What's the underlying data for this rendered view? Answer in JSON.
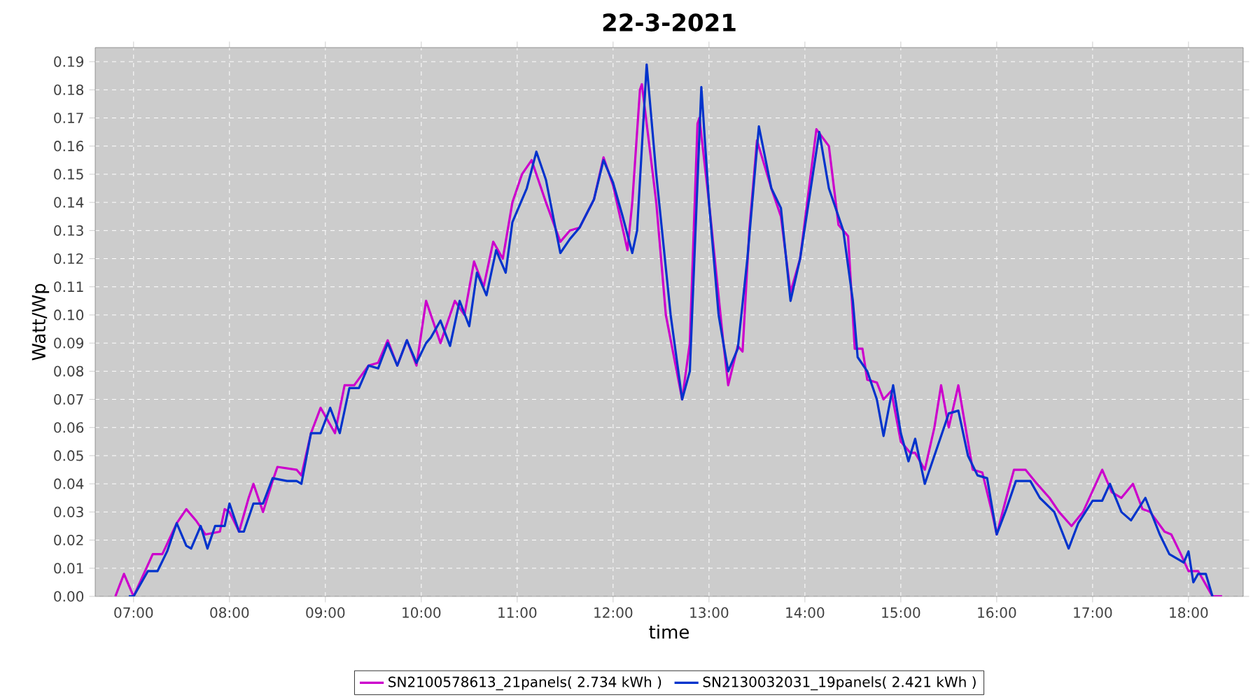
{
  "chart_data": {
    "type": "line",
    "title": "22-3-2021",
    "xlabel": "time",
    "ylabel": "Watt/Wp",
    "xlim": [
      6.6,
      18.57
    ],
    "xticks": [
      {
        "value": 7,
        "label": "07:00"
      },
      {
        "value": 8,
        "label": "08:00"
      },
      {
        "value": 9,
        "label": "09:00"
      },
      {
        "value": 10,
        "label": "10:00"
      },
      {
        "value": 11,
        "label": "11:00"
      },
      {
        "value": 12,
        "label": "12:00"
      },
      {
        "value": 13,
        "label": "13:00"
      },
      {
        "value": 14,
        "label": "14:00"
      },
      {
        "value": 15,
        "label": "15:00"
      },
      {
        "value": 16,
        "label": "16:00"
      },
      {
        "value": 17,
        "label": "17:00"
      },
      {
        "value": 18,
        "label": "18:00"
      }
    ],
    "ylim": [
      0,
      0.195
    ],
    "yticks": [
      {
        "value": 0,
        "label": "0.00"
      },
      {
        "value": 0.01,
        "label": "0.01"
      },
      {
        "value": 0.02,
        "label": "0.02"
      },
      {
        "value": 0.03,
        "label": "0.03"
      },
      {
        "value": 0.04,
        "label": "0.04"
      },
      {
        "value": 0.05,
        "label": "0.05"
      },
      {
        "value": 0.06,
        "label": "0.06"
      },
      {
        "value": 0.07,
        "label": "0.07"
      },
      {
        "value": 0.08,
        "label": "0.08"
      },
      {
        "value": 0.09,
        "label": "0.09"
      },
      {
        "value": 0.1,
        "label": "0.10"
      },
      {
        "value": 0.11,
        "label": "0.11"
      },
      {
        "value": 0.12,
        "label": "0.12"
      },
      {
        "value": 0.13,
        "label": "0.13"
      },
      {
        "value": 0.14,
        "label": "0.14"
      },
      {
        "value": 0.15,
        "label": "0.15"
      },
      {
        "value": 0.16,
        "label": "0.16"
      },
      {
        "value": 0.17,
        "label": "0.17"
      },
      {
        "value": 0.18,
        "label": "0.18"
      },
      {
        "value": 0.19,
        "label": "0.19"
      }
    ],
    "grid": true,
    "legend": "bottom",
    "series": [
      {
        "name": "SN2100578613_21panels( 2.734 kWh )",
        "color": "#cc00cc",
        "x": [
          6.81,
          6.9,
          7.0,
          7.2,
          7.3,
          7.45,
          7.55,
          7.65,
          7.75,
          7.9,
          7.95,
          8.0,
          8.1,
          8.2,
          8.25,
          8.35,
          8.45,
          8.5,
          8.7,
          8.75,
          8.85,
          8.95,
          9.1,
          9.2,
          9.3,
          9.45,
          9.55,
          9.65,
          9.75,
          9.85,
          9.95,
          10.05,
          10.2,
          10.35,
          10.45,
          10.55,
          10.65,
          10.75,
          10.85,
          10.95,
          11.05,
          11.15,
          11.3,
          11.45,
          11.55,
          11.65,
          11.8,
          11.9,
          12.0,
          12.15,
          12.2,
          12.28,
          12.3,
          12.45,
          12.55,
          12.72,
          12.8,
          12.88,
          12.9,
          13.0,
          13.15,
          13.2,
          13.3,
          13.35,
          13.42,
          13.5,
          13.65,
          13.75,
          13.85,
          13.95,
          14.12,
          14.25,
          14.35,
          14.45,
          14.52,
          14.6,
          14.65,
          14.75,
          14.82,
          14.9,
          15.0,
          15.1,
          15.15,
          15.25,
          15.35,
          15.42,
          15.5,
          15.6,
          15.65,
          15.75,
          15.85,
          15.95,
          16.0,
          16.1,
          16.18,
          16.3,
          16.42,
          16.55,
          16.65,
          16.78,
          16.9,
          17.1,
          17.2,
          17.3,
          17.42,
          17.52,
          17.6,
          17.75,
          17.82,
          17.92,
          18.0,
          18.1,
          18.2,
          18.25,
          18.35
        ],
        "values": [
          0,
          0.008,
          0,
          0.015,
          0.015,
          0.026,
          0.031,
          0.027,
          0.022,
          0.023,
          0.031,
          0.03,
          0.023,
          0.035,
          0.04,
          0.03,
          0.041,
          0.046,
          0.045,
          0.043,
          0.058,
          0.067,
          0.058,
          0.075,
          0.075,
          0.082,
          0.083,
          0.091,
          0.082,
          0.091,
          0.082,
          0.105,
          0.09,
          0.105,
          0.1,
          0.119,
          0.11,
          0.126,
          0.12,
          0.14,
          0.15,
          0.155,
          0.14,
          0.126,
          0.13,
          0.131,
          0.141,
          0.156,
          0.146,
          0.123,
          0.14,
          0.18,
          0.182,
          0.14,
          0.1,
          0.07,
          0.09,
          0.168,
          0.17,
          0.14,
          0.09,
          0.075,
          0.089,
          0.087,
          0.13,
          0.162,
          0.145,
          0.135,
          0.108,
          0.12,
          0.166,
          0.16,
          0.132,
          0.128,
          0.088,
          0.088,
          0.077,
          0.076,
          0.07,
          0.073,
          0.055,
          0.051,
          0.051,
          0.045,
          0.06,
          0.075,
          0.06,
          0.075,
          0.065,
          0.045,
          0.044,
          0.03,
          0.022,
          0.035,
          0.045,
          0.045,
          0.04,
          0.035,
          0.03,
          0.025,
          0.03,
          0.045,
          0.037,
          0.035,
          0.04,
          0.031,
          0.03,
          0.023,
          0.022,
          0.015,
          0.009,
          0.009,
          0.003,
          0,
          0
        ]
      },
      {
        "name": "SN2130032031_19panels( 2.421 kWh )",
        "color": "#0033cc",
        "x": [
          6.95,
          7.0,
          7.15,
          7.25,
          7.35,
          7.45,
          7.55,
          7.6,
          7.7,
          7.77,
          7.85,
          7.95,
          8.0,
          8.1,
          8.15,
          8.25,
          8.35,
          8.45,
          8.6,
          8.7,
          8.75,
          8.85,
          8.95,
          9.05,
          9.15,
          9.25,
          9.35,
          9.45,
          9.55,
          9.65,
          9.75,
          9.85,
          9.95,
          10.05,
          10.1,
          10.2,
          10.3,
          10.4,
          10.5,
          10.58,
          10.68,
          10.78,
          10.88,
          10.95,
          11.1,
          11.2,
          11.3,
          11.45,
          11.55,
          11.65,
          11.8,
          11.9,
          12.0,
          12.1,
          12.2,
          12.25,
          12.35,
          12.45,
          12.6,
          12.72,
          12.8,
          12.92,
          13.0,
          13.1,
          13.2,
          13.3,
          13.4,
          13.52,
          13.65,
          13.75,
          13.85,
          13.95,
          14.15,
          14.25,
          14.4,
          14.5,
          14.55,
          14.65,
          14.75,
          14.82,
          14.92,
          15.0,
          15.08,
          15.15,
          15.25,
          15.35,
          15.5,
          15.6,
          15.7,
          15.8,
          15.9,
          16.0,
          16.1,
          16.2,
          16.35,
          16.45,
          16.6,
          16.75,
          16.85,
          17.0,
          17.1,
          17.18,
          17.3,
          17.4,
          17.55,
          17.7,
          17.8,
          17.95,
          18.0,
          18.05,
          18.1,
          18.18,
          18.25
        ],
        "values": [
          0,
          0,
          0.009,
          0.009,
          0.016,
          0.026,
          0.018,
          0.017,
          0.025,
          0.017,
          0.025,
          0.025,
          0.033,
          0.023,
          0.023,
          0.033,
          0.033,
          0.042,
          0.041,
          0.041,
          0.04,
          0.058,
          0.058,
          0.067,
          0.058,
          0.074,
          0.074,
          0.082,
          0.081,
          0.09,
          0.082,
          0.091,
          0.083,
          0.09,
          0.092,
          0.098,
          0.089,
          0.105,
          0.096,
          0.115,
          0.107,
          0.123,
          0.115,
          0.133,
          0.145,
          0.158,
          0.148,
          0.122,
          0.127,
          0.131,
          0.141,
          0.155,
          0.147,
          0.135,
          0.122,
          0.13,
          0.189,
          0.15,
          0.1,
          0.07,
          0.08,
          0.181,
          0.14,
          0.1,
          0.08,
          0.088,
          0.12,
          0.167,
          0.145,
          0.138,
          0.105,
          0.12,
          0.165,
          0.145,
          0.13,
          0.105,
          0.085,
          0.08,
          0.07,
          0.057,
          0.075,
          0.058,
          0.048,
          0.056,
          0.04,
          0.05,
          0.065,
          0.066,
          0.05,
          0.043,
          0.042,
          0.022,
          0.031,
          0.041,
          0.041,
          0.035,
          0.03,
          0.017,
          0.026,
          0.034,
          0.034,
          0.04,
          0.03,
          0.027,
          0.035,
          0.022,
          0.015,
          0.012,
          0.016,
          0.005,
          0.008,
          0.008,
          0
        ]
      }
    ]
  }
}
